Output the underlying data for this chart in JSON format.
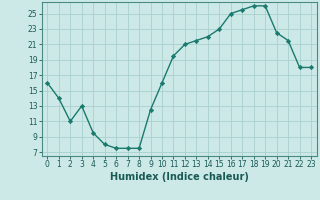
{
  "x": [
    0,
    1,
    2,
    3,
    4,
    5,
    6,
    7,
    8,
    9,
    10,
    11,
    12,
    13,
    14,
    15,
    16,
    17,
    18,
    19,
    20,
    21,
    22,
    23
  ],
  "y": [
    16,
    14,
    11,
    13,
    9.5,
    8,
    7.5,
    7.5,
    7.5,
    12.5,
    16,
    19.5,
    21,
    21.5,
    22,
    23,
    25,
    25.5,
    26,
    26,
    22.5,
    21.5,
    18,
    18
  ],
  "line_color": "#1a7a6e",
  "marker": "D",
  "marker_size": 2.2,
  "bg_color": "#cce9e7",
  "grid_color": "#a8d0ce",
  "xlabel": "Humidex (Indice chaleur)",
  "xlabel_fontsize": 7,
  "ylim": [
    6.5,
    26.5
  ],
  "xlim": [
    -0.5,
    23.5
  ],
  "yticks": [
    7,
    9,
    11,
    13,
    15,
    17,
    19,
    21,
    23,
    25
  ],
  "xticks": [
    0,
    1,
    2,
    3,
    4,
    5,
    6,
    7,
    8,
    9,
    10,
    11,
    12,
    13,
    14,
    15,
    16,
    17,
    18,
    19,
    20,
    21,
    22,
    23
  ],
  "tick_fontsize": 5.5,
  "line_width": 1.0
}
